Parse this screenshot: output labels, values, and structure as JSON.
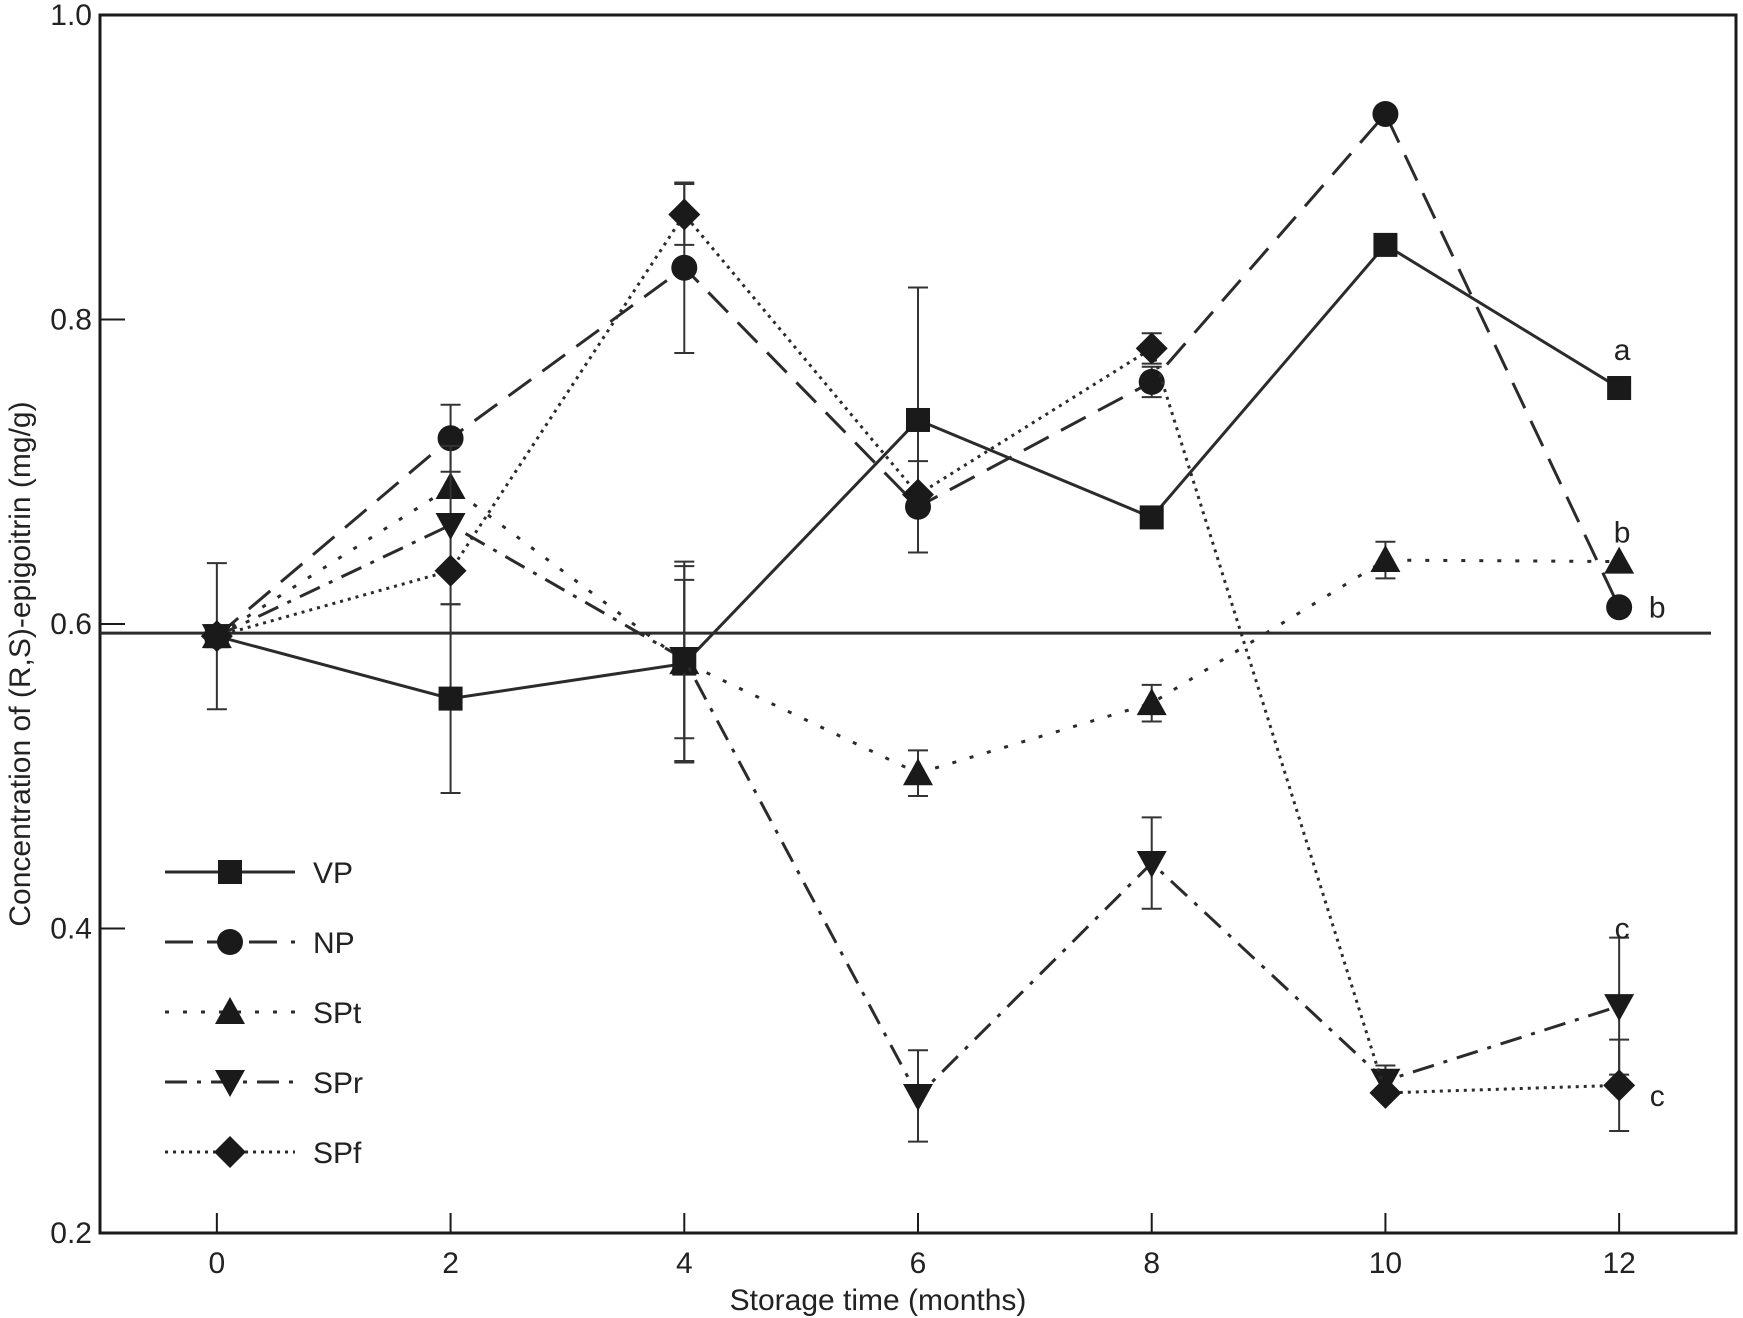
{
  "chart_data": {
    "type": "line",
    "title": "",
    "xlabel": "Storage time (months)",
    "ylabel": "Concentration of (R,S)-epigoitrin (mg/g)",
    "xlim": [
      -1,
      13
    ],
    "ylim": [
      0.2,
      1.0
    ],
    "x_ticks": [
      0,
      2,
      4,
      6,
      8,
      10,
      12
    ],
    "x_tick_labels": [
      "0",
      "2",
      "4",
      "6",
      "8",
      "10",
      "12"
    ],
    "y_ticks": [
      0.2,
      0.4,
      0.6,
      0.8,
      1.0
    ],
    "y_tick_labels": [
      "0.2",
      "0.4",
      "0.6",
      "0.8",
      "1.0"
    ],
    "reference_line": {
      "y": 0.594
    },
    "legend_position": "bottom-left",
    "x": [
      0,
      2,
      4,
      6,
      8,
      10,
      12
    ],
    "series": [
      {
        "name": "VP",
        "marker": "square",
        "dash": "solid",
        "values": [
          0.592,
          0.551,
          0.574,
          0.734,
          0.67,
          0.849,
          0.755
        ],
        "errors": [
          0.048,
          0.062,
          0.064,
          0.087,
          0.0,
          0.0,
          0.0
        ]
      },
      {
        "name": "NP",
        "marker": "circle",
        "dash": "dashed",
        "values": [
          0.592,
          0.722,
          0.834,
          0.677,
          0.759,
          0.935,
          0.611
        ],
        "errors": [
          0.0,
          0.022,
          0.056,
          0.03,
          0.01,
          0.0,
          0.0
        ]
      },
      {
        "name": "SPt",
        "marker": "triangle-up",
        "dash": "dotted",
        "values": [
          0.592,
          0.69,
          0.575,
          0.502,
          0.548,
          0.642,
          0.641
        ],
        "errors": [
          0.0,
          0.0,
          0.066,
          0.015,
          0.012,
          0.012,
          0.0
        ]
      },
      {
        "name": "SPr",
        "marker": "triangle-down",
        "dash": "dashdot",
        "values": [
          0.592,
          0.665,
          0.577,
          0.29,
          0.443,
          0.3,
          0.349
        ],
        "errors": [
          0.0,
          0.052,
          0.052,
          0.03,
          0.03,
          0.01,
          0.045
        ]
      },
      {
        "name": "SPf",
        "marker": "diamond",
        "dash": "densedot",
        "values": [
          0.592,
          0.635,
          0.869,
          0.685,
          0.781,
          0.292,
          0.297
        ],
        "errors": [
          0.0,
          0.0,
          0.02,
          0.0,
          0.01,
          0.0,
          0.03
        ]
      }
    ],
    "annotations": [
      {
        "text": "a",
        "x": 12,
        "y": 0.78
      },
      {
        "text": "b",
        "x": 12,
        "y": 0.66
      },
      {
        "text": "b",
        "x": 12.3,
        "y": 0.611
      },
      {
        "text": "c",
        "x": 12,
        "y": 0.4
      },
      {
        "text": "c",
        "x": 12.3,
        "y": 0.29
      }
    ],
    "colors": {
      "line": "#2b2b2b",
      "marker": "#1a1a1a",
      "frame": "#1a1a1a",
      "background": "#ffffff"
    }
  }
}
